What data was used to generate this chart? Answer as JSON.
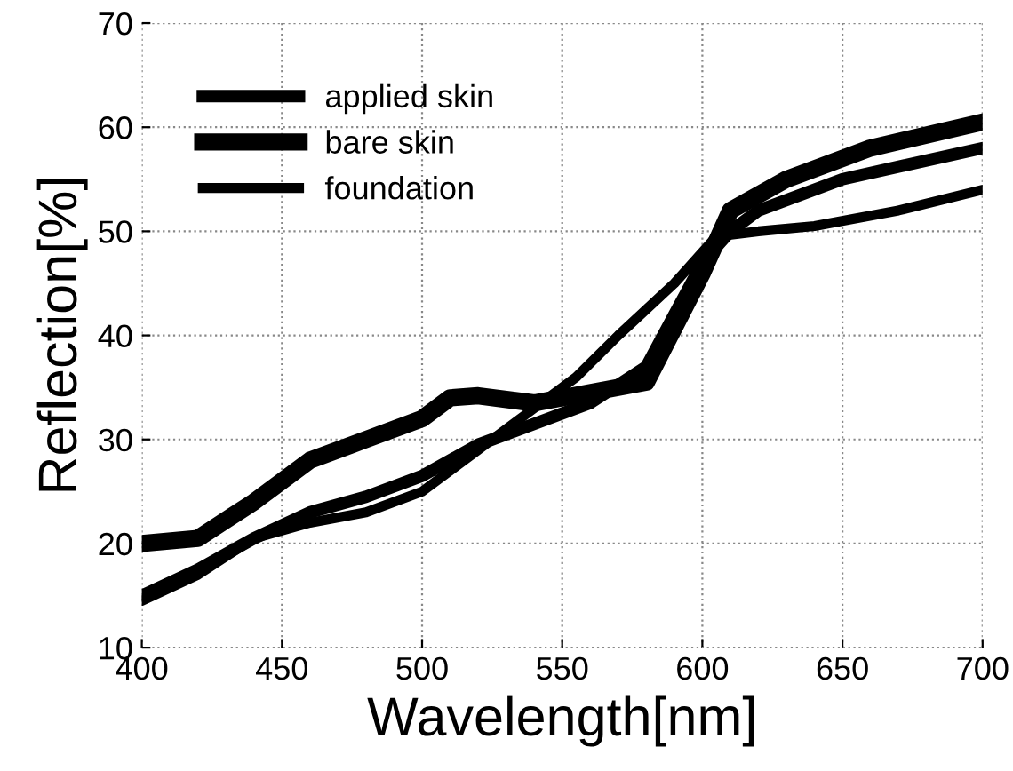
{
  "chart_data": {
    "type": "line",
    "xlabel": "Wavelength[nm]",
    "ylabel": "Reflection[%]",
    "xlim": [
      400,
      700
    ],
    "ylim": [
      10,
      70
    ],
    "xticks": [
      400,
      450,
      500,
      550,
      600,
      650,
      700
    ],
    "yticks": [
      10,
      20,
      30,
      40,
      50,
      60,
      70
    ],
    "grid": true,
    "legend": "top left",
    "line_style": "solid",
    "series": [
      {
        "name": "applied skin",
        "color": "#000000",
        "x": [
          400,
          420,
          440,
          460,
          480,
          500,
          520,
          540,
          560,
          580,
          590,
          600,
          610,
          620,
          650,
          700
        ],
        "values": [
          15,
          17.5,
          20.5,
          23,
          24.5,
          26.5,
          29.5,
          31.5,
          33.5,
          37,
          42,
          47,
          50,
          52,
          55,
          58
        ]
      },
      {
        "name": "bare skin",
        "color": "#000000",
        "x": [
          400,
          420,
          440,
          460,
          480,
          500,
          510,
          520,
          540,
          560,
          580,
          600,
          610,
          630,
          660,
          700
        ],
        "values": [
          20,
          20.5,
          24,
          28,
          30,
          32,
          34,
          34.2,
          33.5,
          34.5,
          35.5,
          46,
          52,
          55,
          58,
          60.5
        ]
      },
      {
        "name": "foundation",
        "color": "#000000",
        "x": [
          400,
          420,
          440,
          460,
          480,
          500,
          520,
          540,
          555,
          570,
          590,
          605,
          620,
          640,
          670,
          700
        ],
        "values": [
          14.5,
          17,
          20.5,
          22,
          23,
          25,
          29,
          33,
          36,
          40,
          45,
          49.5,
          50,
          50.5,
          52,
          54
        ]
      }
    ]
  }
}
